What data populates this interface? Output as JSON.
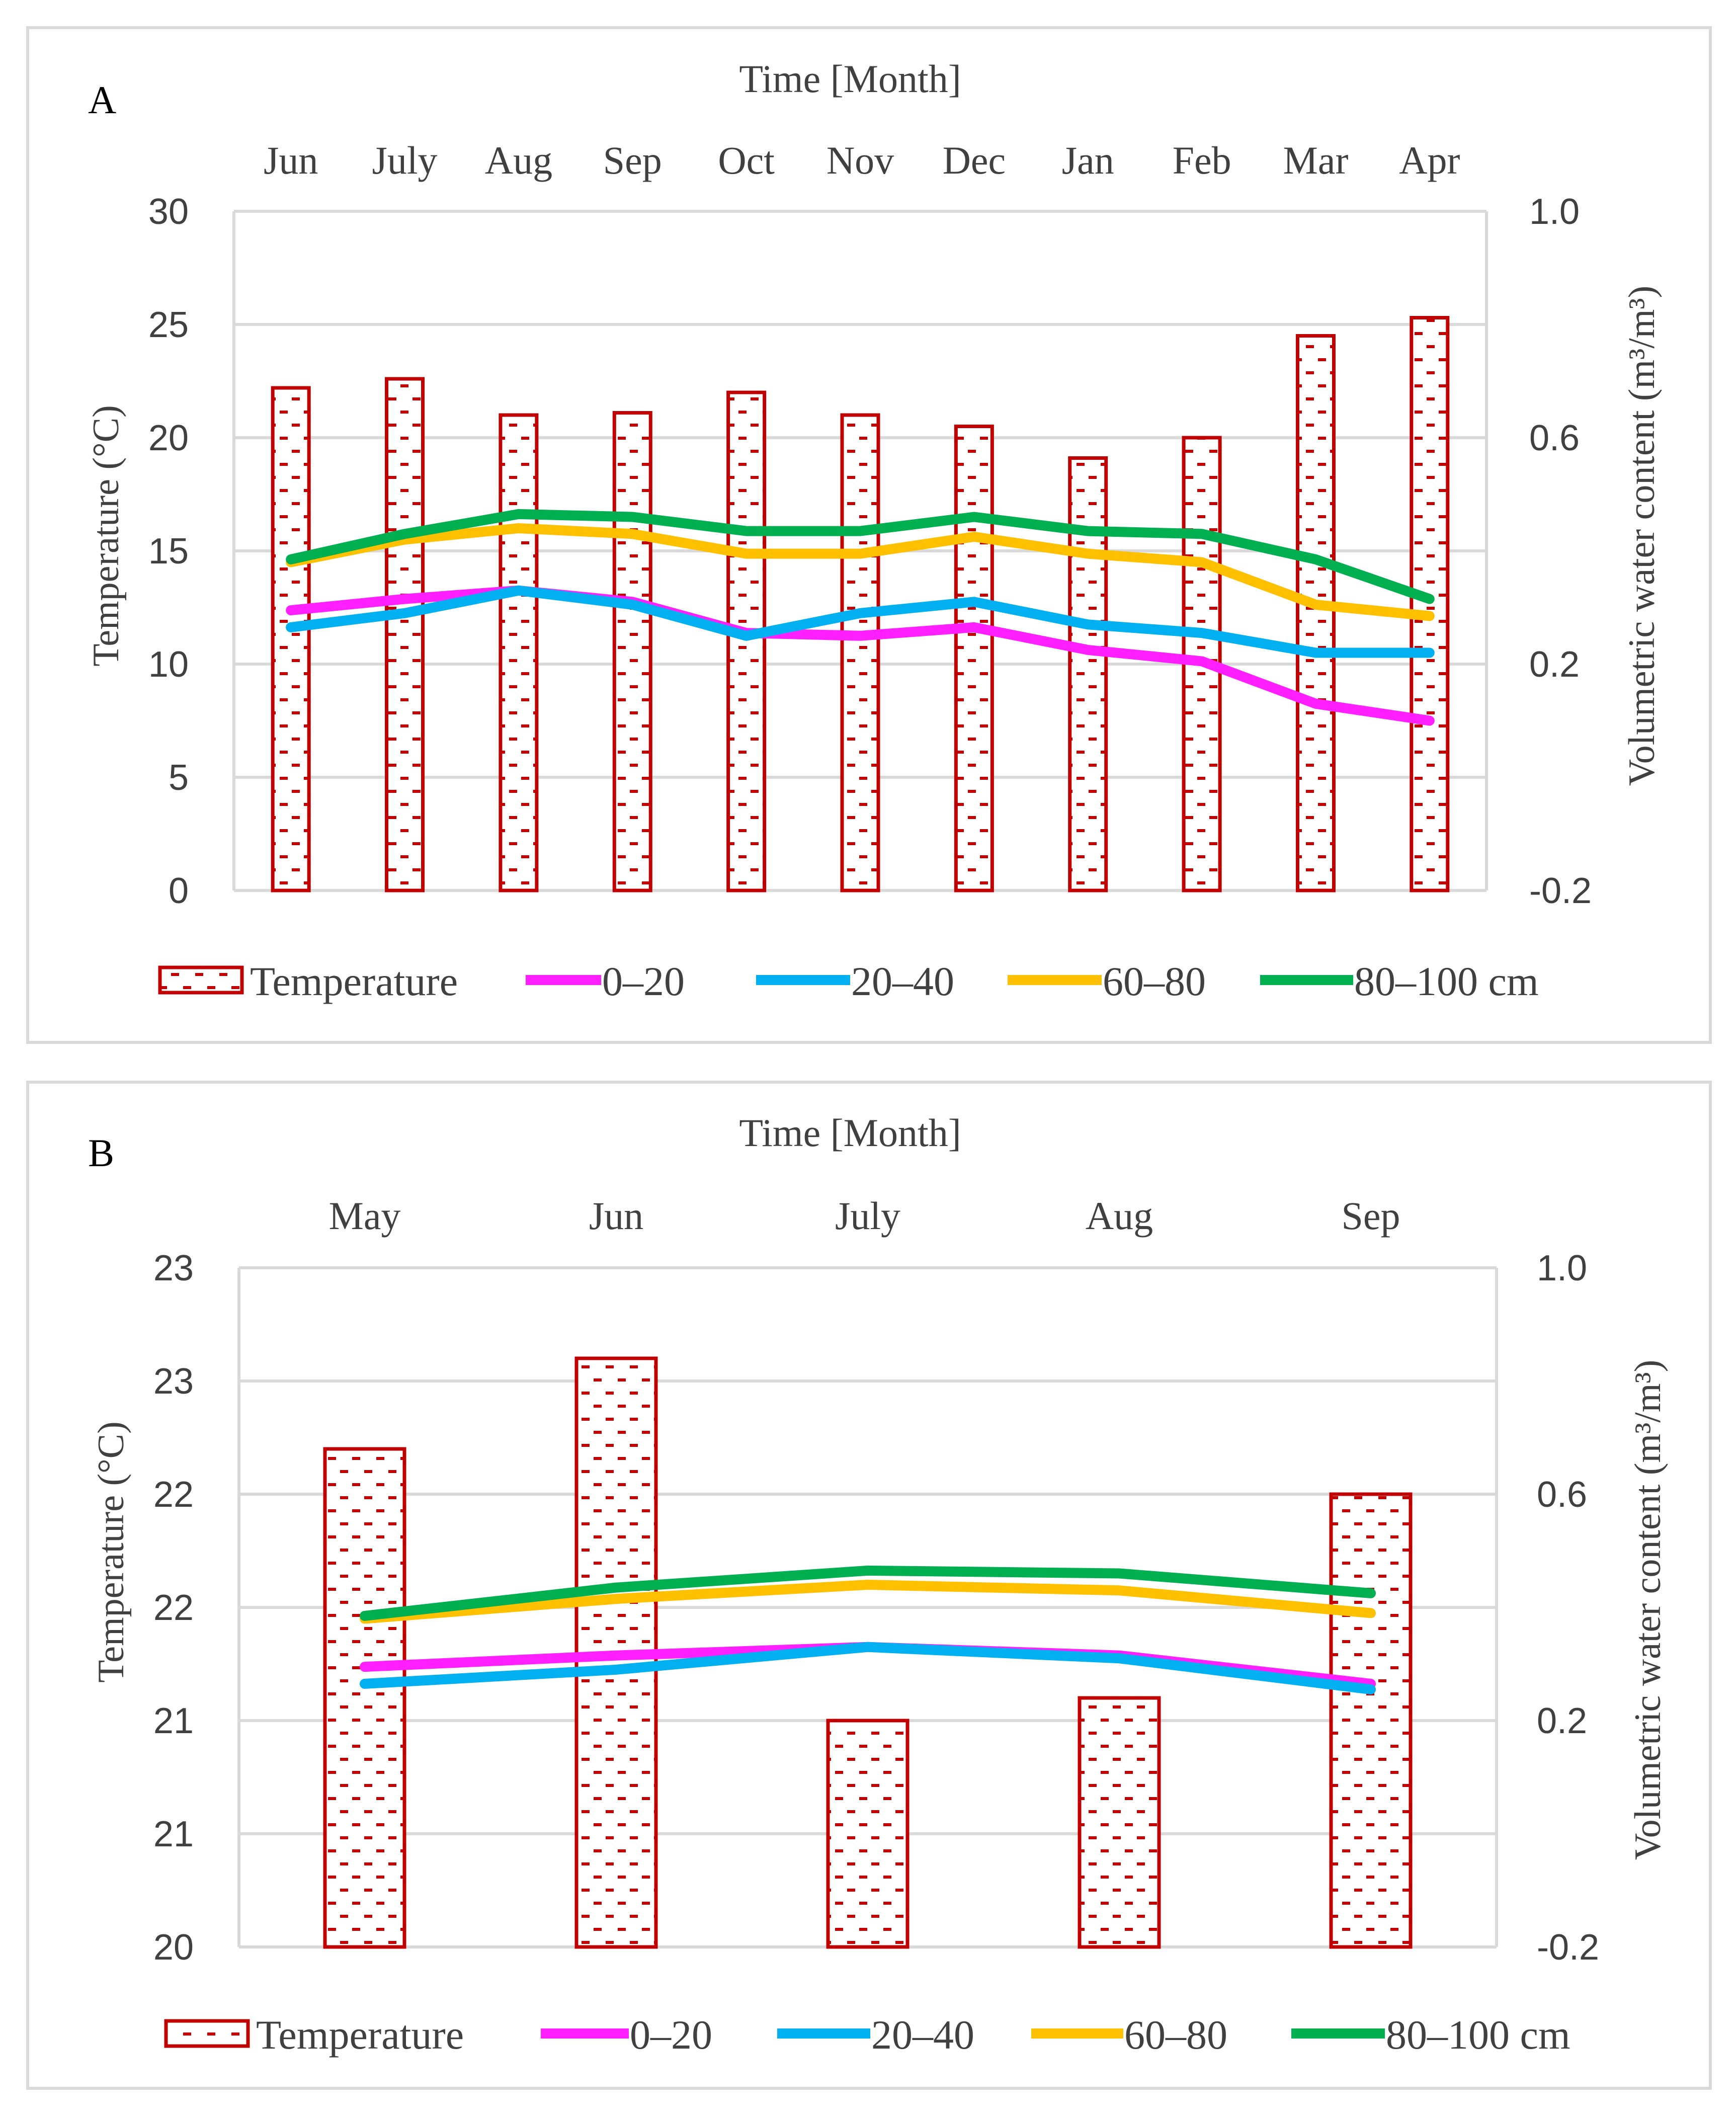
{
  "figure": {
    "legend": {
      "temperature": "Temperature",
      "s1": "0–20",
      "s2": "20–40",
      "s3": "60–80",
      "s4": "80–100 cm"
    }
  },
  "colors": {
    "bar_stroke": "#c00000",
    "s1": "#ff1fff",
    "s2": "#00b0f0",
    "s3": "#ffc000",
    "s4": "#00b050"
  },
  "chart_data": [
    {
      "type": "bar",
      "panel": "A",
      "title": "Time [Month]",
      "categories": [
        "Jun",
        "July",
        "Aug",
        "Sep",
        "Oct",
        "Nov",
        "Dec",
        "Jan",
        "Feb",
        "Mar",
        "Apr"
      ],
      "ylabel": "Temperature (°C)",
      "ylim": [
        0,
        30
      ],
      "yticks": [
        0,
        5,
        10,
        15,
        20,
        25,
        30
      ],
      "ytick_labels": [
        "0",
        "5",
        "10",
        "15",
        "20",
        "25",
        "30"
      ],
      "y2label": "Volumetric water content (m³/m³)",
      "y2lim": [
        -0.2,
        1.0
      ],
      "y2ticks": [
        -0.2,
        0.2,
        0.6,
        1.0
      ],
      "y2tick_labels": [
        "-0.2",
        "0.2",
        "0.6",
        "1.0"
      ],
      "bars": {
        "name": "Temperature",
        "values": [
          22.2,
          22.6,
          21.0,
          21.1,
          22.0,
          21.0,
          20.5,
          19.1,
          20.0,
          24.5,
          25.3
        ]
      },
      "series": [
        {
          "name": "0–20",
          "axis": "right",
          "values": [
            0.295,
            0.315,
            0.33,
            0.31,
            0.255,
            0.25,
            0.265,
            0.225,
            0.205,
            0.13,
            0.1
          ]
        },
        {
          "name": "20–40",
          "axis": "right",
          "values": [
            0.265,
            0.29,
            0.33,
            0.305,
            0.25,
            0.29,
            0.31,
            0.27,
            0.255,
            0.22,
            0.22
          ]
        },
        {
          "name": "60–80",
          "axis": "right",
          "values": [
            0.38,
            0.42,
            0.44,
            0.43,
            0.395,
            0.395,
            0.425,
            0.395,
            0.38,
            0.305,
            0.285
          ]
        },
        {
          "name": "80–100 cm",
          "axis": "right",
          "values": [
            0.385,
            0.43,
            0.465,
            0.46,
            0.435,
            0.435,
            0.46,
            0.435,
            0.43,
            0.385,
            0.315
          ]
        }
      ]
    },
    {
      "type": "bar",
      "panel": "B",
      "title": "Time [Month]",
      "categories": [
        "May",
        "Jun",
        "July",
        "Aug",
        "Sep"
      ],
      "ylabel": "Temperature (°C)",
      "ylim": [
        20,
        23
      ],
      "yticks": [
        20,
        20.5,
        21,
        21.5,
        22,
        22.5,
        23
      ],
      "ytick_labels": [
        "20",
        "21",
        "21",
        "22",
        "22",
        "23",
        "23"
      ],
      "y2label": "Volumetric water content (m³/m³)",
      "y2lim": [
        -0.2,
        1.0
      ],
      "y2ticks": [
        -0.2,
        0.2,
        0.6,
        1.0
      ],
      "y2tick_labels": [
        "-0.2",
        "0.2",
        "0.6",
        "1.0"
      ],
      "bars": {
        "name": "Temperature",
        "values": [
          22.2,
          22.6,
          21.0,
          21.1,
          22.0
        ]
      },
      "series": [
        {
          "name": "0–20",
          "axis": "right",
          "values": [
            0.295,
            0.315,
            0.33,
            0.315,
            0.265
          ]
        },
        {
          "name": "20–40",
          "axis": "right",
          "values": [
            0.265,
            0.29,
            0.33,
            0.31,
            0.255
          ]
        },
        {
          "name": "60–80",
          "axis": "right",
          "values": [
            0.38,
            0.415,
            0.44,
            0.43,
            0.39
          ]
        },
        {
          "name": "80–100 cm",
          "axis": "right",
          "values": [
            0.385,
            0.435,
            0.465,
            0.46,
            0.425
          ]
        }
      ]
    }
  ]
}
